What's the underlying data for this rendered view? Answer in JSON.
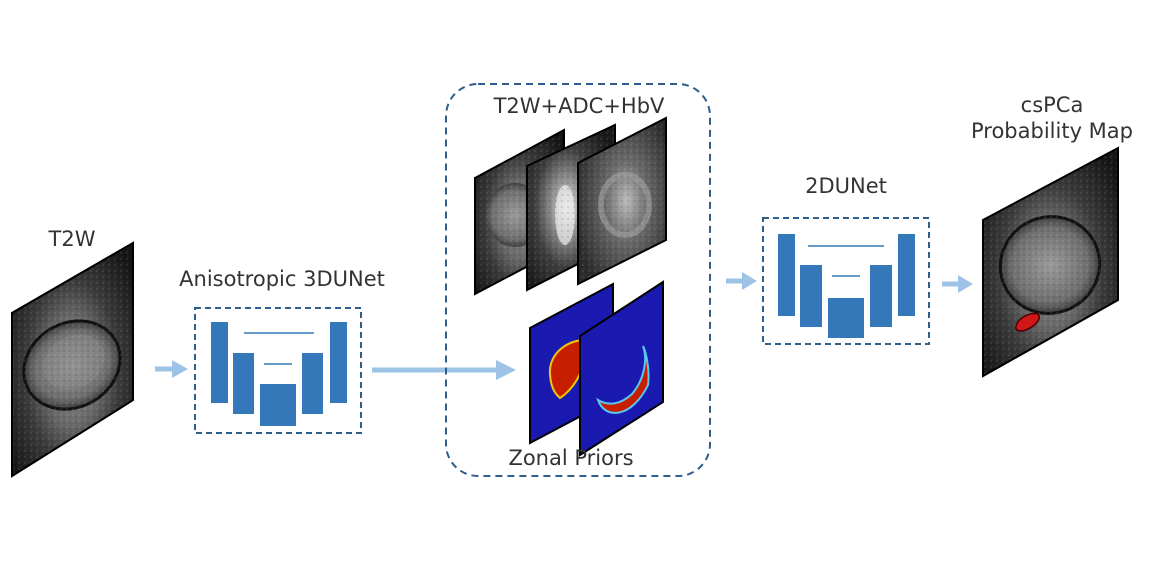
{
  "labels": {
    "t2w_input": "T2W",
    "unet3d": "Anisotropic 3DUNet",
    "multiparametric": "T2W+ADC+HbV",
    "zonal_priors": "Zonal Priors",
    "unet2d": "2DUNet",
    "output_line1": "csPCa",
    "output_line2": "Probability Map"
  },
  "colors": {
    "unet_block": "#3478BA",
    "arrow": "#9DC3E6",
    "dashed_border": "#2E5E8A",
    "prior_background": "#1A1AB0",
    "prior_region": "#C81E00",
    "lesion": "#D01818",
    "text": "#333333"
  }
}
